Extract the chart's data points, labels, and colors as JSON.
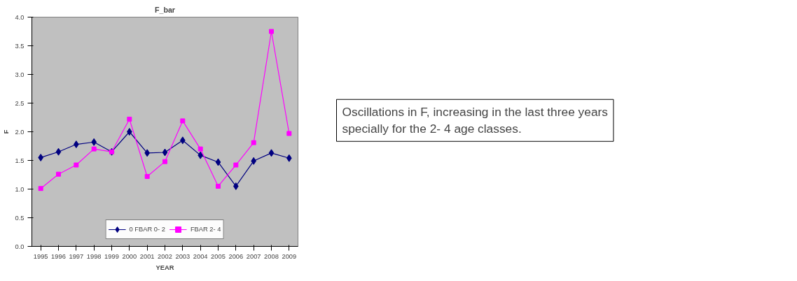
{
  "chart_data": {
    "type": "line",
    "title": "F_bar",
    "xlabel": "YEAR",
    "ylabel": "F",
    "categories": [
      "1995",
      "1996",
      "1997",
      "1998",
      "1999",
      "2000",
      "2001",
      "2002",
      "2003",
      "2004",
      "2005",
      "2006",
      "2007",
      "2008",
      "2009"
    ],
    "series": [
      {
        "name": "0 FBAR 0- 2",
        "color": "#000080",
        "marker": "diamond",
        "values": [
          1.55,
          1.65,
          1.78,
          1.82,
          1.65,
          2.0,
          1.63,
          1.64,
          1.85,
          1.59,
          1.47,
          1.05,
          1.49,
          1.63,
          1.54
        ]
      },
      {
        "name": "FBAR 2- 4",
        "color": "#ff00ff",
        "marker": "square",
        "values": [
          1.01,
          1.26,
          1.42,
          1.7,
          1.65,
          2.22,
          1.22,
          1.48,
          2.19,
          1.7,
          1.05,
          1.42,
          1.81,
          3.75,
          1.97
        ]
      }
    ],
    "ylim": [
      0,
      4
    ],
    "yticks": [
      {
        "value": 0,
        "label": "0.0"
      },
      {
        "value": 0.5,
        "label": "0.5"
      },
      {
        "value": 1,
        "label": "1.0"
      },
      {
        "value": 1.5,
        "label": "1.5"
      },
      {
        "value": 2,
        "label": "2.0"
      },
      {
        "value": 2.5,
        "label": "2.5"
      },
      {
        "value": 3,
        "label": "3.0"
      },
      {
        "value": 3.5,
        "label": "3.5"
      },
      {
        "value": 4,
        "label": "4.0"
      }
    ],
    "grid": false,
    "legend": "bottom",
    "annotations": [
      "Oscillations in F, increasing in the last three years specially for the 2- 4 age classes."
    ]
  }
}
